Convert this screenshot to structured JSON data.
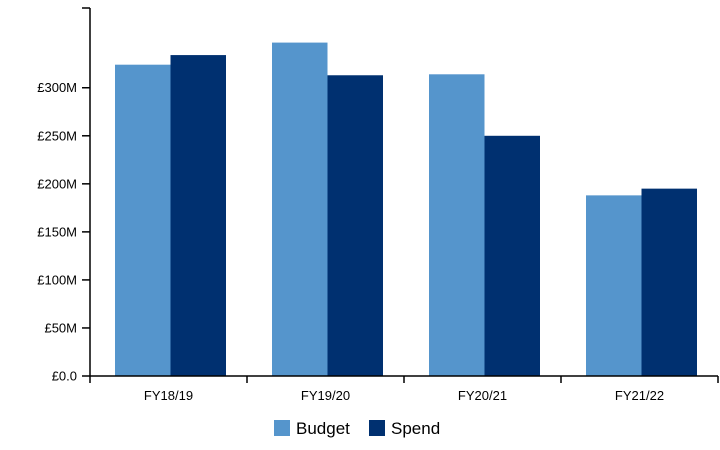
{
  "chart_data": {
    "type": "bar",
    "categories": [
      "FY18/19",
      "FY19/20",
      "FY20/21",
      "FY21/22"
    ],
    "series": [
      {
        "name": "Budget",
        "color": "#5595CC",
        "values": [
          324,
          347,
          314,
          188
        ]
      },
      {
        "name": "Spend",
        "color": "#003070",
        "values": [
          334,
          313,
          250,
          195
        ]
      }
    ],
    "y_tick_values": [
      0,
      50,
      100,
      150,
      200,
      250,
      300
    ],
    "y_tick_labels": [
      "£0.0",
      "£50M",
      "£100M",
      "£150M",
      "£200M",
      "£250M",
      "£300M"
    ],
    "ylim": [
      0,
      383
    ],
    "title": "",
    "xlabel": "",
    "ylabel": "",
    "unit": "£M",
    "grid": false,
    "legend_position": "bottom-center"
  }
}
